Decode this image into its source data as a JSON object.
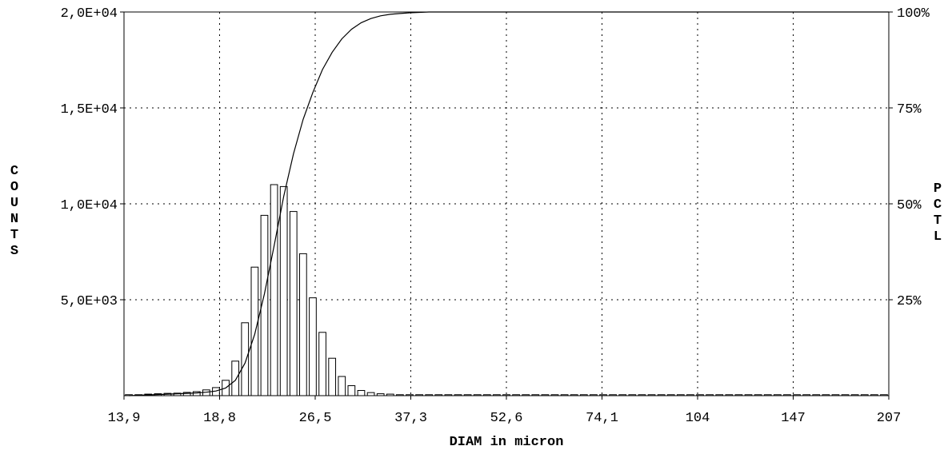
{
  "chart_data": {
    "type": "bar",
    "xlabel": "DIAM in micron",
    "ylabel": "COUNTS",
    "y2label": "PCTL",
    "x_ticks": [
      "13,9",
      "18,8",
      "26,5",
      "37,3",
      "52,6",
      "74,1",
      "104",
      "147",
      "207"
    ],
    "y_ticks": [
      {
        "value": 5000,
        "label": "5,0E+03"
      },
      {
        "value": 10000,
        "label": "1,0E+04"
      },
      {
        "value": 15000,
        "label": "1,5E+04"
      },
      {
        "value": 20000,
        "label": "2,0E+04"
      }
    ],
    "y2_ticks": [
      {
        "value": 25,
        "label": "25%"
      },
      {
        "value": 50,
        "label": "50%"
      },
      {
        "value": 75,
        "label": "75%"
      },
      {
        "value": 100,
        "label": "100%"
      }
    ],
    "ylim": [
      0,
      20000
    ],
    "y2lim": [
      0,
      100
    ],
    "grid": true,
    "series": [
      {
        "kind": "bar",
        "values": [
          50,
          50,
          80,
          100,
          120,
          130,
          170,
          210,
          300,
          420,
          800,
          1800,
          3800,
          6700,
          9400,
          11000,
          10900,
          9600,
          7400,
          5100,
          3300,
          1950,
          1000,
          520,
          270,
          160,
          100,
          80,
          50,
          50,
          50,
          50,
          50,
          50,
          50,
          50,
          50,
          50,
          50,
          50,
          50,
          50,
          50,
          50,
          50,
          50,
          50,
          50,
          50,
          50,
          50,
          50,
          50,
          50,
          50,
          50,
          50,
          50,
          50,
          50,
          50,
          50,
          50,
          50,
          50,
          50,
          50,
          50,
          50,
          50,
          50,
          50,
          50,
          50,
          50,
          50,
          50,
          50,
          50
        ]
      },
      {
        "kind": "cumulative-line",
        "values": [
          0.0,
          0.1,
          0.2,
          0.3,
          0.4,
          0.5,
          0.6,
          0.7,
          0.9,
          1.2,
          2.0,
          4.0,
          8.5,
          16.0,
          26.5,
          39.0,
          52.0,
          63.0,
          72.0,
          79.0,
          85.0,
          89.5,
          93.0,
          95.5,
          97.2,
          98.3,
          99.0,
          99.4,
          99.6,
          99.8,
          99.9,
          100,
          100,
          100,
          100,
          100,
          100,
          100,
          100,
          100,
          100,
          100,
          100,
          100,
          100,
          100,
          100,
          100,
          100,
          100,
          100,
          100,
          100,
          100,
          100,
          100,
          100,
          100,
          100,
          100,
          100,
          100,
          100,
          100,
          100,
          100,
          100,
          100,
          100,
          100,
          100,
          100,
          100,
          100,
          100,
          100,
          100,
          100,
          100
        ]
      }
    ]
  }
}
